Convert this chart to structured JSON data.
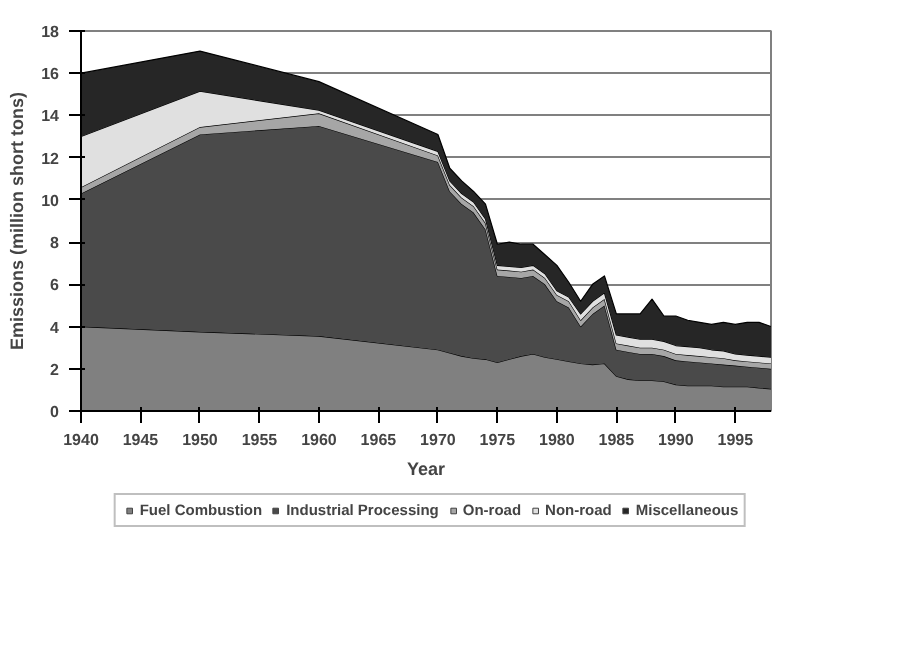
{
  "chart_data": {
    "type": "area",
    "stacked": true,
    "xlabel": "Year",
    "ylabel": "Emissions (million short tons)",
    "x": [
      1940,
      1950,
      1960,
      1970,
      1971,
      1972,
      1973,
      1974,
      1975,
      1976,
      1977,
      1978,
      1979,
      1980,
      1981,
      1982,
      1983,
      1984,
      1985,
      1986,
      1987,
      1988,
      1989,
      1990,
      1991,
      1992,
      1993,
      1994,
      1995,
      1996,
      1997,
      1998
    ],
    "series": [
      {
        "name": "Fuel Combustion",
        "color": "#808080",
        "values": [
          4.0,
          3.75,
          3.55,
          2.9,
          2.75,
          2.6,
          2.5,
          2.45,
          2.3,
          2.45,
          2.6,
          2.7,
          2.55,
          2.45,
          2.35,
          2.25,
          2.2,
          2.25,
          1.65,
          1.5,
          1.45,
          1.45,
          1.4,
          1.25,
          1.2,
          1.2,
          1.2,
          1.15,
          1.15,
          1.15,
          1.1,
          1.05
        ]
      },
      {
        "name": "Industrial Processing",
        "color": "#4a4a4a",
        "values": [
          6.3,
          9.35,
          9.95,
          8.9,
          7.65,
          7.2,
          6.9,
          6.15,
          4.1,
          3.9,
          3.7,
          3.7,
          3.45,
          2.75,
          2.55,
          1.75,
          2.4,
          2.75,
          1.25,
          1.3,
          1.25,
          1.25,
          1.2,
          1.15,
          1.15,
          1.1,
          1.05,
          1.05,
          1.0,
          0.95,
          0.95,
          0.95
        ]
      },
      {
        "name": "On-road",
        "color": "#a6a6a6",
        "values": [
          0.3,
          0.35,
          0.6,
          0.3,
          0.3,
          0.3,
          0.3,
          0.3,
          0.3,
          0.3,
          0.3,
          0.3,
          0.3,
          0.3,
          0.3,
          0.3,
          0.3,
          0.3,
          0.3,
          0.3,
          0.3,
          0.3,
          0.3,
          0.3,
          0.3,
          0.3,
          0.3,
          0.3,
          0.25,
          0.25,
          0.25,
          0.25
        ]
      },
      {
        "name": "Non-road",
        "color": "#e0e0e0",
        "values": [
          2.4,
          1.7,
          0.15,
          0.2,
          0.2,
          0.2,
          0.2,
          0.2,
          0.2,
          0.2,
          0.2,
          0.2,
          0.2,
          0.2,
          0.2,
          0.3,
          0.3,
          0.3,
          0.4,
          0.4,
          0.4,
          0.4,
          0.4,
          0.4,
          0.4,
          0.4,
          0.35,
          0.35,
          0.3,
          0.3,
          0.3,
          0.3
        ]
      },
      {
        "name": "Miscellaneous",
        "color": "#262626",
        "values": [
          3.0,
          1.9,
          1.35,
          0.8,
          0.6,
          0.6,
          0.5,
          0.7,
          1.0,
          1.15,
          1.1,
          1.0,
          0.9,
          1.2,
          0.7,
          0.6,
          0.8,
          0.8,
          1.0,
          1.1,
          1.2,
          1.9,
          1.2,
          1.4,
          1.25,
          1.2,
          1.2,
          1.35,
          1.4,
          1.55,
          1.6,
          1.45
        ]
      }
    ],
    "xlim": [
      1940,
      1998
    ],
    "xticks": [
      1940,
      1945,
      1950,
      1955,
      1960,
      1965,
      1970,
      1975,
      1980,
      1985,
      1990,
      1995
    ],
    "ylim": [
      0,
      18
    ],
    "yticks": [
      0,
      2,
      4,
      6,
      8,
      10,
      12,
      14,
      16,
      18
    ],
    "grid": "y",
    "legend": "bottom"
  }
}
